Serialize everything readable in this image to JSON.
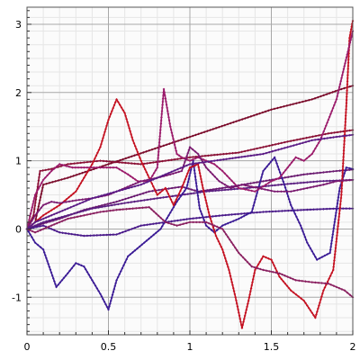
{
  "chart_data": {
    "type": "line",
    "title": "",
    "xlabel": "",
    "ylabel": "",
    "xlim": [
      0,
      2
    ],
    "ylim": [
      -1.55,
      3.25
    ],
    "x_ticks": [
      "0",
      "0.5",
      "1",
      "1.5",
      "2"
    ],
    "y_ticks": [
      "-1",
      "0",
      "1",
      "2",
      "3"
    ],
    "x_tick_values": [
      0,
      0.5,
      1,
      1.5,
      2
    ],
    "y_tick_values": [
      -1,
      0,
      1,
      2,
      3
    ],
    "grid": true,
    "legend": "none",
    "marker": "small diamond",
    "series": [
      {
        "color": "#7a0a2a",
        "points": [
          [
            0,
            0
          ],
          [
            0.05,
            0.1
          ],
          [
            0.1,
            0.65
          ],
          [
            0.25,
            0.75
          ],
          [
            0.5,
            0.95
          ],
          [
            0.75,
            1.15
          ],
          [
            1.0,
            1.35
          ],
          [
            1.25,
            1.55
          ],
          [
            1.5,
            1.75
          ],
          [
            1.75,
            1.9
          ],
          [
            1.93,
            2.05
          ],
          [
            2,
            2.1
          ]
        ]
      },
      {
        "color": "#8a1035",
        "points": [
          [
            0,
            0
          ],
          [
            0.04,
            0.2
          ],
          [
            0.08,
            0.85
          ],
          [
            0.15,
            0.88
          ],
          [
            0.25,
            0.95
          ],
          [
            0.45,
            1.0
          ],
          [
            0.7,
            0.95
          ],
          [
            1.0,
            1.05
          ],
          [
            1.3,
            1.12
          ],
          [
            1.6,
            1.28
          ],
          [
            1.85,
            1.4
          ],
          [
            2,
            1.45
          ]
        ]
      },
      {
        "color": "#6a1a70",
        "points": [
          [
            0,
            0
          ],
          [
            0.1,
            0.08
          ],
          [
            0.2,
            0.15
          ],
          [
            0.35,
            0.28
          ],
          [
            0.55,
            0.4
          ],
          [
            0.75,
            0.55
          ],
          [
            0.95,
            0.62
          ],
          [
            1.05,
            0.55
          ],
          [
            1.2,
            0.6
          ],
          [
            1.45,
            0.7
          ],
          [
            1.7,
            0.8
          ],
          [
            1.9,
            0.85
          ],
          [
            2,
            0.87
          ]
        ]
      },
      {
        "color": "#5a1e80",
        "points": [
          [
            0,
            0
          ],
          [
            0.1,
            0.1
          ],
          [
            0.25,
            0.2
          ],
          [
            0.4,
            0.3
          ],
          [
            0.6,
            0.38
          ],
          [
            0.8,
            0.45
          ],
          [
            0.95,
            0.5
          ],
          [
            1.1,
            0.55
          ],
          [
            1.35,
            0.6
          ],
          [
            1.6,
            0.66
          ],
          [
            1.8,
            0.7
          ],
          [
            2,
            0.72
          ]
        ]
      },
      {
        "color": "#4a1a8a",
        "points": [
          [
            0,
            0
          ],
          [
            0.1,
            0.05
          ],
          [
            0.2,
            -0.05
          ],
          [
            0.35,
            -0.1
          ],
          [
            0.55,
            -0.08
          ],
          [
            0.7,
            0.05
          ],
          [
            0.85,
            0.1
          ],
          [
            1.0,
            0.15
          ],
          [
            1.2,
            0.2
          ],
          [
            1.45,
            0.25
          ],
          [
            1.7,
            0.28
          ],
          [
            1.9,
            0.3
          ],
          [
            2,
            0.3
          ]
        ]
      },
      {
        "color": "#3a1a95",
        "points": [
          [
            0,
            0
          ],
          [
            0.05,
            -0.2
          ],
          [
            0.1,
            -0.3
          ],
          [
            0.18,
            -0.85
          ],
          [
            0.25,
            -0.65
          ],
          [
            0.3,
            -0.5
          ],
          [
            0.35,
            -0.55
          ],
          [
            0.4,
            -0.75
          ],
          [
            0.45,
            -0.95
          ],
          [
            0.5,
            -1.18
          ],
          [
            0.55,
            -0.75
          ],
          [
            0.62,
            -0.4
          ],
          [
            0.72,
            -0.2
          ],
          [
            0.82,
            0.0
          ],
          [
            0.92,
            0.4
          ],
          [
            0.98,
            0.6
          ],
          [
            1.02,
            1.0
          ],
          [
            1.06,
            0.3
          ],
          [
            1.1,
            0.05
          ],
          [
            1.15,
            -0.05
          ],
          [
            1.2,
            0.05
          ],
          [
            1.3,
            0.15
          ],
          [
            1.38,
            0.25
          ],
          [
            1.45,
            0.85
          ],
          [
            1.52,
            1.05
          ],
          [
            1.58,
            0.65
          ],
          [
            1.62,
            0.35
          ],
          [
            1.68,
            0.05
          ],
          [
            1.72,
            -0.2
          ],
          [
            1.78,
            -0.45
          ],
          [
            1.86,
            -0.35
          ],
          [
            1.92,
            0.6
          ],
          [
            1.96,
            0.9
          ],
          [
            2,
            0.88
          ]
        ]
      },
      {
        "color": "#c41020",
        "points": [
          [
            0,
            0
          ],
          [
            0.05,
            0.1
          ],
          [
            0.1,
            0.2
          ],
          [
            0.2,
            0.35
          ],
          [
            0.3,
            0.55
          ],
          [
            0.4,
            0.95
          ],
          [
            0.45,
            1.2
          ],
          [
            0.5,
            1.6
          ],
          [
            0.55,
            1.9
          ],
          [
            0.6,
            1.7
          ],
          [
            0.65,
            1.3
          ],
          [
            0.7,
            1.0
          ],
          [
            0.75,
            0.75
          ],
          [
            0.8,
            0.5
          ],
          [
            0.85,
            0.6
          ],
          [
            0.9,
            0.35
          ],
          [
            0.95,
            0.6
          ],
          [
            1.0,
            0.9
          ],
          [
            1.05,
            0.95
          ],
          [
            1.08,
            0.6
          ],
          [
            1.12,
            0.2
          ],
          [
            1.16,
            -0.1
          ],
          [
            1.2,
            -0.3
          ],
          [
            1.24,
            -0.6
          ],
          [
            1.28,
            -1.0
          ],
          [
            1.32,
            -1.45
          ],
          [
            1.36,
            -1.05
          ],
          [
            1.4,
            -0.6
          ],
          [
            1.45,
            -0.4
          ],
          [
            1.5,
            -0.45
          ],
          [
            1.55,
            -0.7
          ],
          [
            1.62,
            -0.9
          ],
          [
            1.7,
            -1.05
          ],
          [
            1.77,
            -1.3
          ],
          [
            1.82,
            -0.9
          ],
          [
            1.88,
            -0.6
          ],
          [
            1.93,
            0.5
          ],
          [
            1.96,
            1.8
          ],
          [
            1.98,
            2.8
          ],
          [
            2,
            3.05
          ]
        ]
      },
      {
        "color": "#9b1a6a",
        "points": [
          [
            0,
            0
          ],
          [
            0.05,
            0.5
          ],
          [
            0.1,
            0.72
          ],
          [
            0.15,
            0.85
          ],
          [
            0.2,
            0.95
          ],
          [
            0.28,
            0.9
          ],
          [
            0.35,
            0.9
          ],
          [
            0.45,
            0.9
          ],
          [
            0.55,
            0.9
          ],
          [
            0.62,
            0.8
          ],
          [
            0.68,
            0.7
          ],
          [
            0.75,
            0.7
          ],
          [
            0.8,
            0.9
          ],
          [
            0.84,
            2.05
          ],
          [
            0.88,
            1.5
          ],
          [
            0.92,
            1.1
          ],
          [
            0.95,
            1.05
          ],
          [
            1.0,
            1.0
          ],
          [
            1.05,
            1.05
          ],
          [
            1.1,
            1.0
          ],
          [
            1.15,
            0.95
          ],
          [
            1.2,
            0.85
          ],
          [
            1.3,
            0.6
          ],
          [
            1.4,
            0.55
          ],
          [
            1.5,
            0.7
          ],
          [
            1.55,
            0.75
          ],
          [
            1.6,
            0.9
          ],
          [
            1.65,
            1.05
          ],
          [
            1.7,
            1.0
          ],
          [
            1.75,
            1.1
          ],
          [
            1.8,
            1.3
          ],
          [
            1.85,
            1.6
          ],
          [
            1.9,
            1.9
          ],
          [
            1.94,
            2.3
          ],
          [
            1.97,
            2.6
          ],
          [
            2,
            2.9
          ]
        ]
      },
      {
        "color": "#7a1a70",
        "points": [
          [
            0,
            0
          ],
          [
            0.05,
            0.2
          ],
          [
            0.1,
            0.35
          ],
          [
            0.15,
            0.4
          ],
          [
            0.2,
            0.38
          ],
          [
            0.3,
            0.42
          ],
          [
            0.4,
            0.45
          ],
          [
            0.5,
            0.5
          ],
          [
            0.6,
            0.6
          ],
          [
            0.7,
            0.7
          ],
          [
            0.8,
            0.75
          ],
          [
            0.88,
            0.8
          ],
          [
            0.95,
            0.85
          ],
          [
            1.0,
            1.2
          ],
          [
            1.05,
            1.1
          ],
          [
            1.1,
            0.9
          ],
          [
            1.18,
            0.7
          ],
          [
            1.25,
            0.6
          ],
          [
            1.32,
            0.65
          ],
          [
            1.42,
            0.6
          ],
          [
            1.52,
            0.55
          ],
          [
            1.62,
            0.55
          ],
          [
            1.72,
            0.6
          ],
          [
            1.82,
            0.65
          ],
          [
            1.9,
            0.7
          ],
          [
            2,
            0.72
          ]
        ]
      },
      {
        "color": "#8a2060",
        "points": [
          [
            0,
            0
          ],
          [
            0.05,
            -0.05
          ],
          [
            0.15,
            0.05
          ],
          [
            0.25,
            0.15
          ],
          [
            0.35,
            0.2
          ],
          [
            0.45,
            0.25
          ],
          [
            0.55,
            0.28
          ],
          [
            0.65,
            0.3
          ],
          [
            0.75,
            0.32
          ],
          [
            0.85,
            0.1
          ],
          [
            0.92,
            0.05
          ],
          [
            1.0,
            0.1
          ],
          [
            1.1,
            0.1
          ],
          [
            1.2,
            0.0
          ],
          [
            1.3,
            -0.35
          ],
          [
            1.38,
            -0.55
          ],
          [
            1.45,
            -0.6
          ],
          [
            1.55,
            -0.65
          ],
          [
            1.65,
            -0.75
          ],
          [
            1.75,
            -0.78
          ],
          [
            1.85,
            -0.8
          ],
          [
            1.95,
            -0.9
          ],
          [
            2,
            -1.0
          ]
        ]
      },
      {
        "color": "#5a1a85",
        "points": [
          [
            0,
            0
          ],
          [
            0.05,
            0.1
          ],
          [
            0.15,
            0.2
          ],
          [
            0.25,
            0.3
          ],
          [
            0.4,
            0.45
          ],
          [
            0.55,
            0.55
          ],
          [
            0.7,
            0.65
          ],
          [
            0.85,
            0.8
          ],
          [
            1.0,
            0.95
          ],
          [
            1.15,
            1.0
          ],
          [
            1.3,
            1.05
          ],
          [
            1.45,
            1.1
          ],
          [
            1.6,
            1.2
          ],
          [
            1.75,
            1.3
          ],
          [
            1.9,
            1.35
          ],
          [
            2,
            1.38
          ]
        ]
      }
    ]
  }
}
